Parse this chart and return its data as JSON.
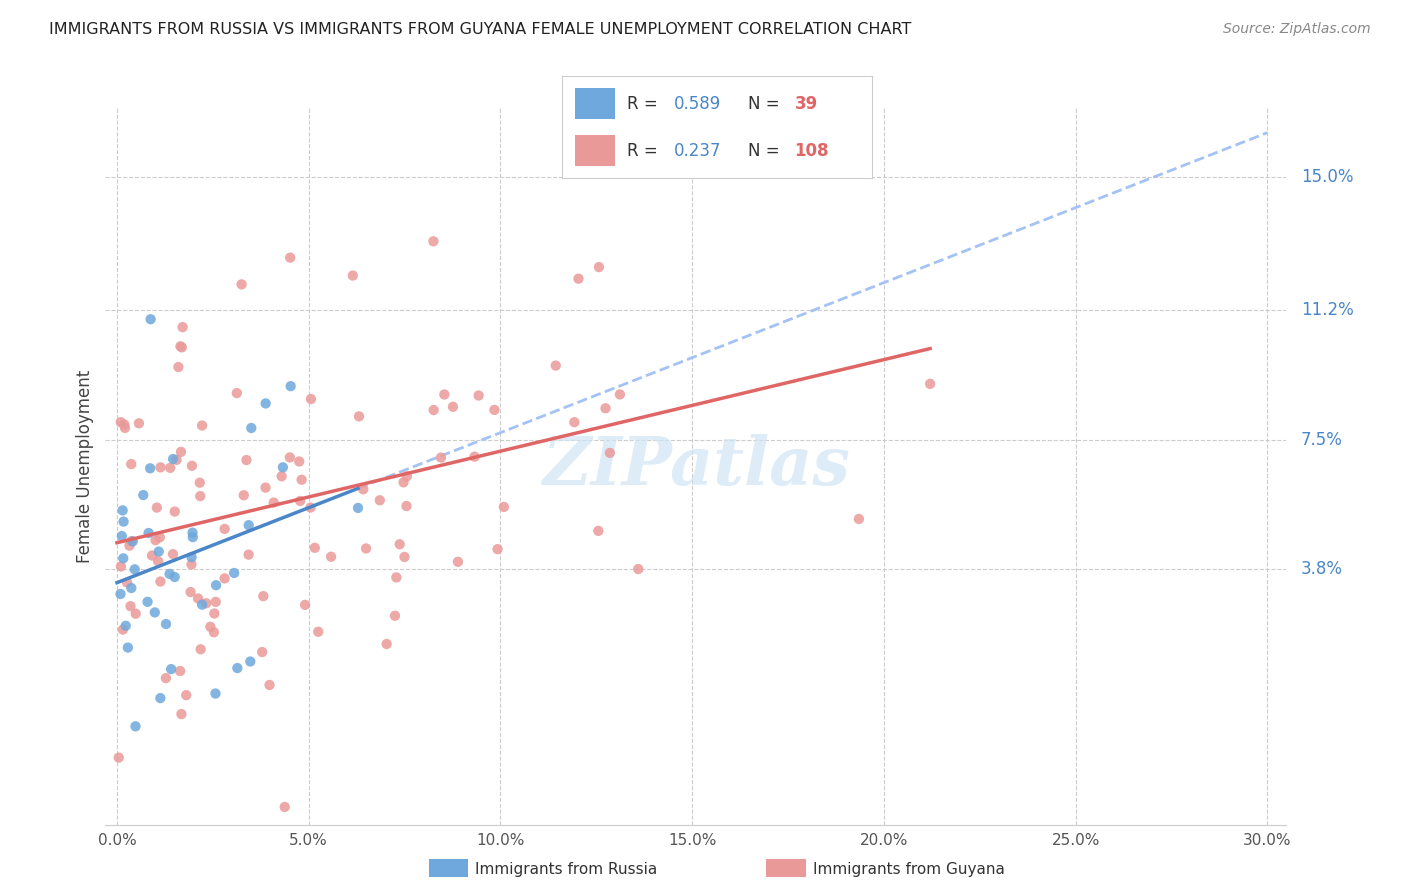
{
  "title": "IMMIGRANTS FROM RUSSIA VS IMMIGRANTS FROM GUYANA FEMALE UNEMPLOYMENT CORRELATION CHART",
  "source": "Source: ZipAtlas.com",
  "xlim": [
    -0.3,
    30.5
  ],
  "ylim": [
    -3.5,
    17.0
  ],
  "xtick_vals": [
    0,
    5,
    10,
    15,
    20,
    25,
    30
  ],
  "ytick_vals": [
    3.8,
    7.5,
    11.2,
    15.0
  ],
  "russia_R": 0.589,
  "russia_N": 39,
  "guyana_R": 0.237,
  "guyana_N": 108,
  "russia_color": "#6fa8dc",
  "guyana_color": "#ea9999",
  "russia_line_color": "#4a86c8",
  "guyana_line_color": "#e06666",
  "dashed_line_color": "#a4c2f4",
  "grid_color": "#cccccc",
  "ylabel_color": "#4a86c8",
  "watermark_color": "#d0e4f5",
  "title_color": "#222222",
  "source_color": "#888888",
  "russia_seed": 77,
  "guyana_seed": 55,
  "legend_R_color": "#4a86c8",
  "legend_N_color": "#e06666"
}
